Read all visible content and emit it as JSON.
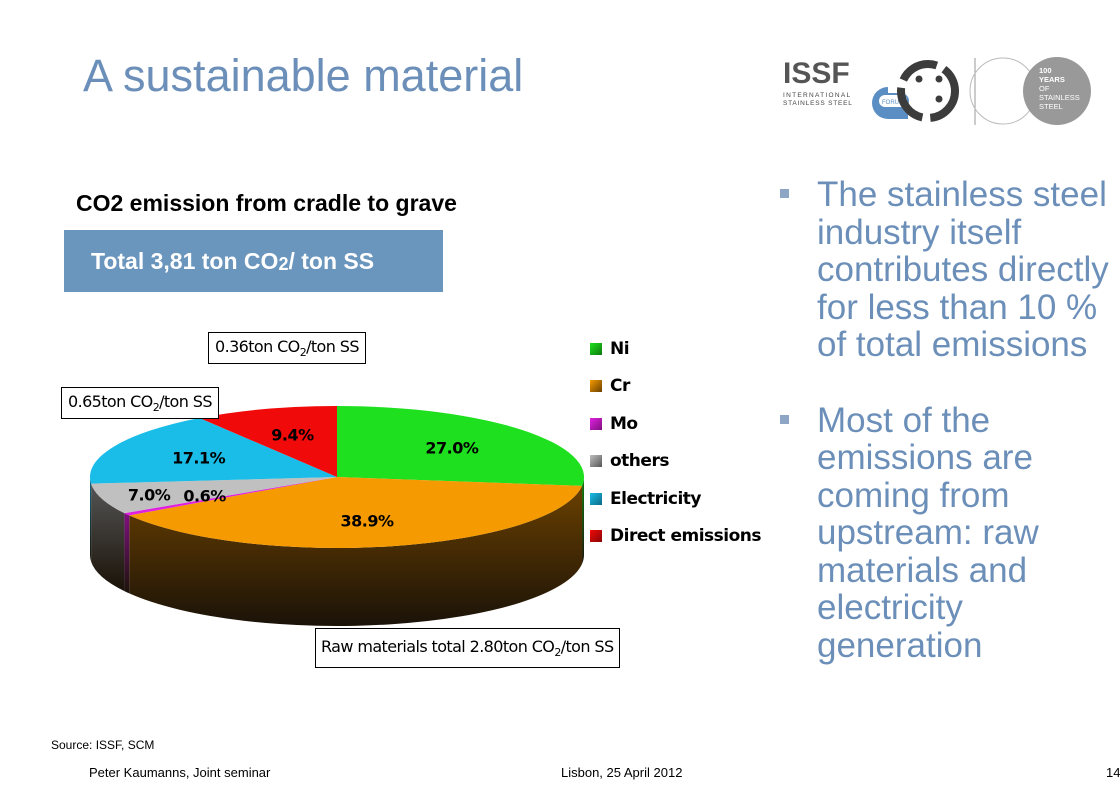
{
  "slide": {
    "title": "A sustainable material",
    "chart_title": "CO2 emission from cradle to grave",
    "total": {
      "prefix": "Total 3,81 ton CO",
      "sub": "2",
      "suffix": "/ ton  SS"
    },
    "notes": {
      "direct": {
        "prefix": "0.36ton CO",
        "sub": "2",
        "suffix": "/ton SS"
      },
      "electricity": {
        "prefix": "0.65ton CO",
        "sub": "2",
        "suffix": "/ton SS"
      },
      "raw": {
        "prefix": "Raw materials total 2.80ton CO",
        "sub": "2",
        "suffix": "/ton SS"
      }
    },
    "bullets": [
      "The stainless steel industry itself contributes directly for less than 10 % of total emissions",
      "Most of the emissions are coming from upstream: raw materials and electricity generation"
    ],
    "source": "Source: ISSF, SCM",
    "footer_left": "Peter Kaumanns, Joint seminar",
    "footer_center": "Lisbon, 25 April 2012",
    "page_number": "14",
    "logo": {
      "issf": "ISSF",
      "line1": "INTERNATIONAL",
      "line2": "STAINLESS STEEL",
      "forum": "FORUM",
      "years": [
        "100",
        "YEARS",
        "OF",
        "STAINLESS",
        "STEEL"
      ]
    }
  },
  "chart_data": {
    "type": "pie",
    "title": "CO2 emission from cradle to grave",
    "categories": [
      "Ni",
      "Cr",
      "Mo",
      "others",
      "Electricity",
      "Direct emissions"
    ],
    "values": [
      27.0,
      38.9,
      0.6,
      7.0,
      17.1,
      9.4
    ],
    "labels": [
      "27.0%",
      "38.9%",
      "0.6%",
      "7.0%",
      "17.1%",
      "9.4%"
    ],
    "colors": [
      "#1ee01e",
      "#f59a00",
      "#e020e0",
      "#c0c0c0",
      "#19bde8",
      "#f00a0a"
    ],
    "side_colors": [
      "#0e7a0e",
      "#6a4000",
      "#801080",
      "#555555",
      "#0b6a85",
      "#8a0505"
    ],
    "legend_position": "right",
    "style": "3d"
  }
}
